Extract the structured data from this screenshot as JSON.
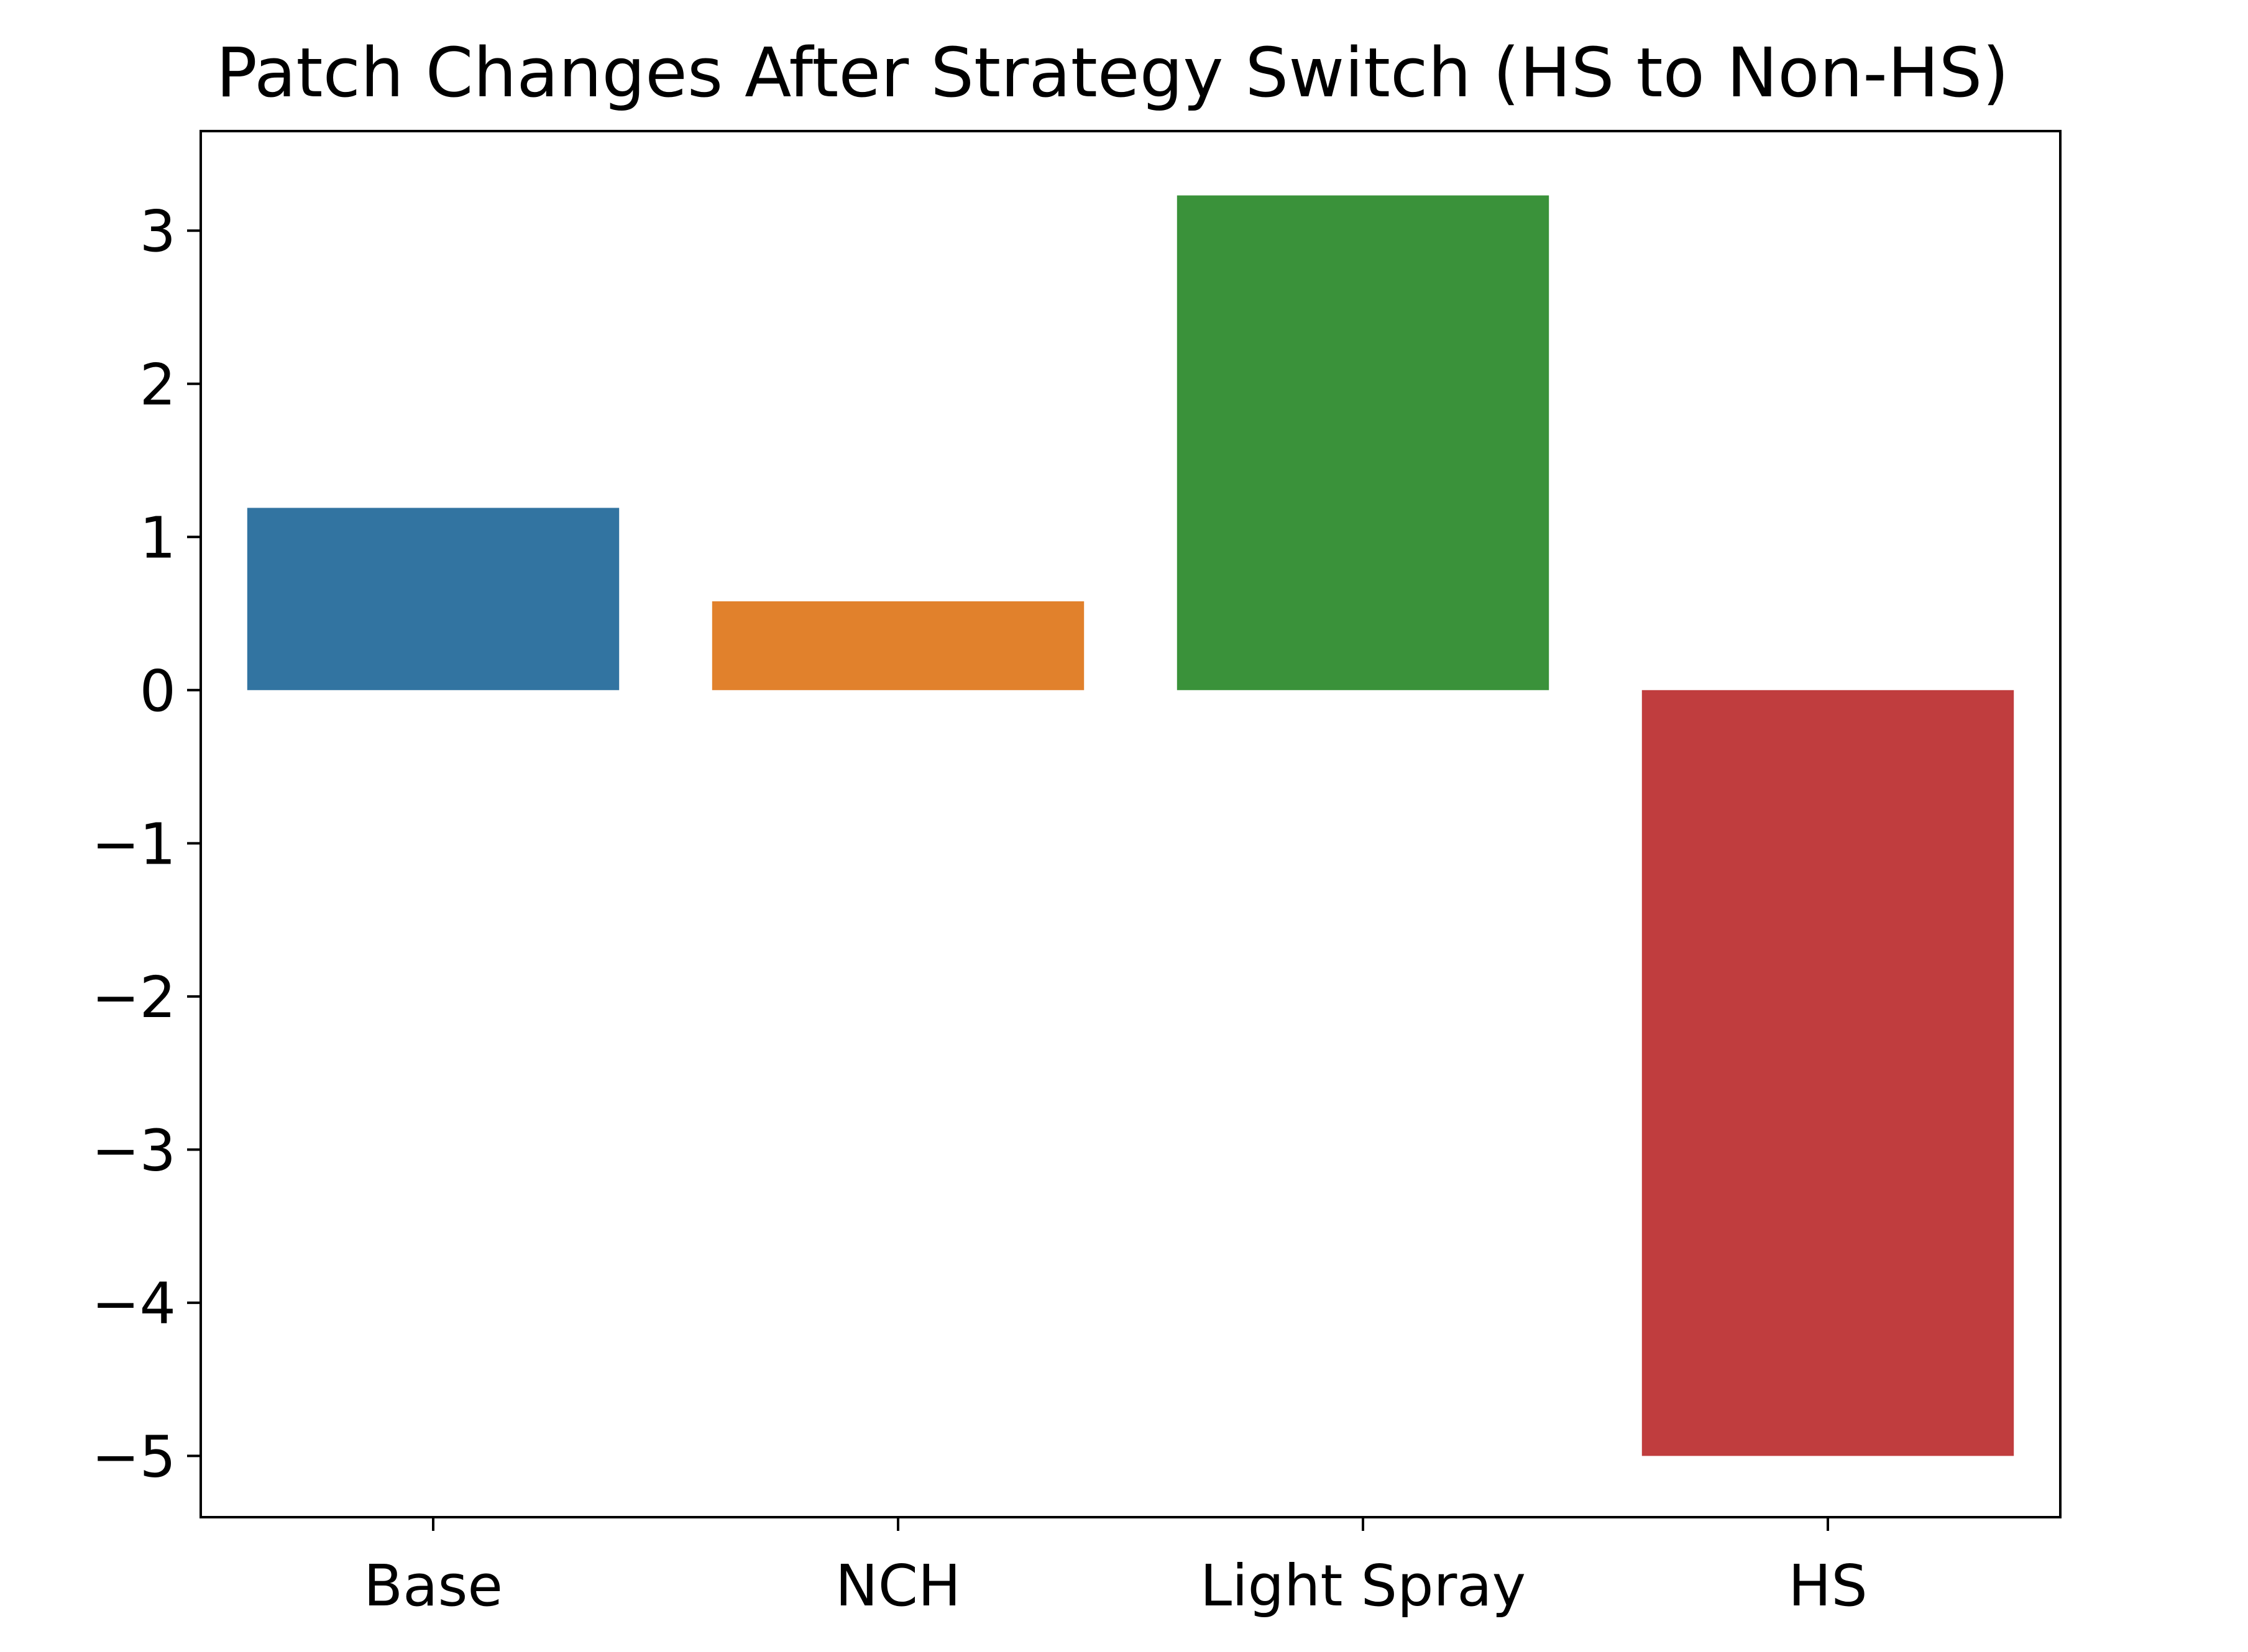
{
  "chart_data": {
    "type": "bar",
    "title": "Patch Changes After Strategy Switch (HS to Non-HS)",
    "xlabel": "",
    "ylabel": "",
    "categories": [
      "Base",
      "NCH",
      "Light Spray",
      "HS"
    ],
    "values": [
      1.19,
      0.58,
      3.23,
      -5.0
    ],
    "colors": [
      "#3274a1",
      "#e1812c",
      "#3a923a",
      "#c03d3e"
    ],
    "ylim": [
      -5.4,
      3.65
    ],
    "yticks": [
      3,
      2,
      1,
      0,
      -1,
      -2,
      -3,
      -4,
      -5
    ],
    "ytick_labels": [
      "3",
      "2",
      "1",
      "0",
      "−1",
      "−2",
      "−3",
      "−4",
      "−5"
    ],
    "grid": false,
    "legend": false
  }
}
